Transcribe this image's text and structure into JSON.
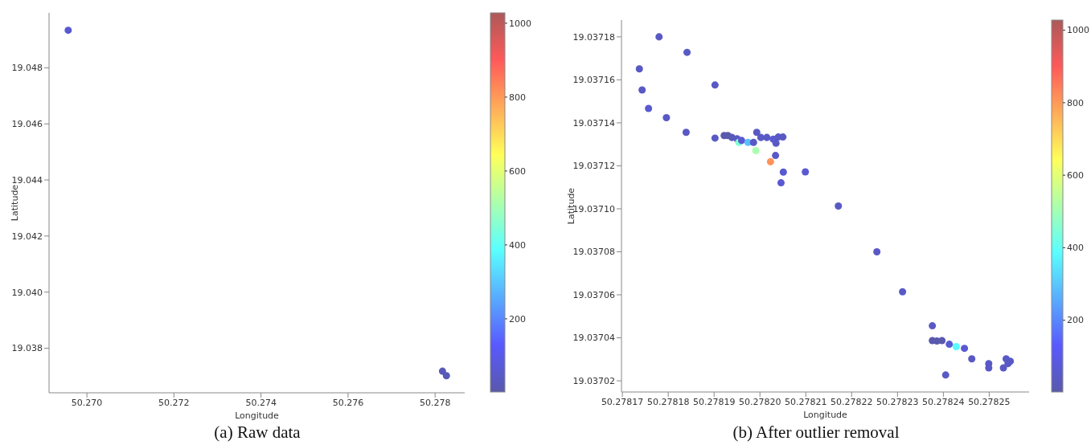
{
  "chart_data": [
    {
      "type": "scatter",
      "title": "(a) Raw data",
      "xlabel": "Longitude",
      "ylabel": "Latitude",
      "marker": "circle",
      "xlim": [
        50.26913,
        50.27868
      ],
      "ylim": [
        19.03641,
        19.04996
      ],
      "xticks": [
        {
          "value": 50.27,
          "label": "50.270"
        },
        50.272,
        50.274,
        50.276,
        50.278
      ],
      "yticks": [
        19.038,
        {
          "value": 19.04,
          "label": "19.040"
        },
        19.042,
        19.044,
        19.046,
        19.048
      ],
      "clim": [
        2,
        1028
      ],
      "cticks": [
        200,
        400,
        600,
        800,
        1000
      ],
      "x": [
        50.26957,
        50.27817,
        50.27826
      ],
      "values": [
        19.04934,
        19.03718,
        19.03702
      ],
      "cvalues": [
        60,
        20,
        20
      ]
    },
    {
      "type": "scatter",
      "title": "(b) After outlier removal",
      "xlabel": "Longitude",
      "ylabel": "Latitude",
      "marker": "circle",
      "xlim": [
        50.2781698,
        50.2782587
      ],
      "ylim": [
        19.0370148,
        19.0371878
      ],
      "xticks": [
        50.27817,
        50.27818,
        50.27819,
        {
          "value": 50.2782,
          "label": "50.27820"
        },
        50.27821,
        50.27822,
        50.27823,
        50.27824,
        50.27825
      ],
      "yticks": [
        19.03702,
        19.03704,
        19.03706,
        19.03708,
        {
          "value": 19.0371,
          "label": "19.03710"
        },
        19.03712,
        19.03714,
        19.03716,
        19.03718
      ],
      "clim": [
        2,
        1028
      ],
      "cticks": [
        200,
        400,
        600,
        800,
        1000
      ],
      "x": [
        50.278178,
        50.2781841,
        50.2781737,
        50.2781743,
        50.2781757,
        50.2781796,
        50.2781839,
        50.2781902,
        50.2781902,
        50.2781922,
        50.278193,
        50.2781939,
        50.278195,
        50.2781954,
        50.278196,
        50.2781974,
        50.2781986,
        50.2781991,
        50.2781993,
        50.2782002,
        50.2782015,
        50.2782029,
        50.2782035,
        50.278204,
        50.278205,
        50.2782034,
        50.2782023,
        50.2782051,
        50.2782046,
        50.2782099,
        50.2782171,
        50.2782255,
        50.2782311,
        50.2782376,
        50.2782376,
        50.2782386,
        50.2782397,
        50.2782405,
        50.2782413,
        50.2782428,
        50.2782446,
        50.2782462,
        50.2782499,
        50.2782499,
        50.2782531,
        50.2782537,
        50.2782541,
        50.2782546
      ],
      "values": [
        19.03718,
        19.0371728,
        19.0371651,
        19.0371553,
        19.0371467,
        19.0371424,
        19.0371356,
        19.0371576,
        19.0371329,
        19.0371341,
        19.0371341,
        19.0371332,
        19.0371326,
        19.0371309,
        19.0371318,
        19.0371309,
        19.0371309,
        19.0371271,
        19.0371356,
        19.0371332,
        19.0371332,
        19.0371324,
        19.0371305,
        19.0371334,
        19.0371334,
        19.0371248,
        19.0371219,
        19.0371171,
        19.0371121,
        19.0371172,
        19.0371013,
        19.03708,
        19.0370614,
        19.0370456,
        19.0370387,
        19.0370385,
        19.0370387,
        19.0370227,
        19.037037,
        19.0370359,
        19.0370351,
        19.0370302,
        19.037028,
        19.037026,
        19.037026,
        19.0370302,
        19.037028,
        19.0370291
      ],
      "cvalues": [
        40,
        40,
        40,
        40,
        60,
        40,
        40,
        40,
        40,
        5,
        5,
        20,
        40,
        450,
        60,
        290,
        40,
        510,
        40,
        40,
        40,
        60,
        40,
        40,
        40,
        40,
        810,
        60,
        60,
        60,
        40,
        40,
        40,
        40,
        5,
        5,
        5,
        40,
        60,
        380,
        60,
        40,
        40,
        40,
        40,
        40,
        40,
        40
      ]
    }
  ]
}
